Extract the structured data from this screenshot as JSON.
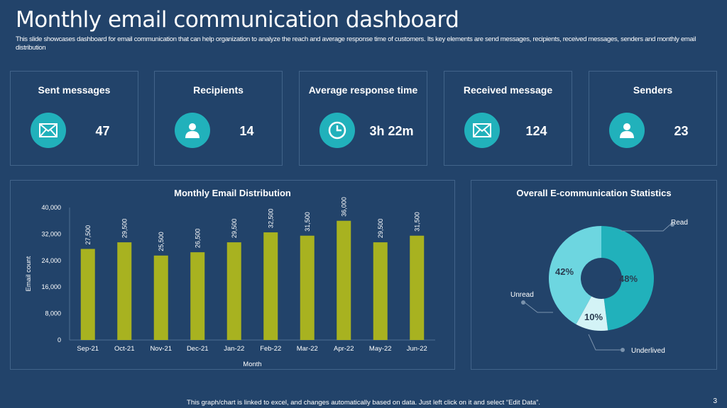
{
  "header": {
    "title": "Monthly email communication dashboard",
    "subtitle": "This slide showcases dashboard for email communication that can help organization to analyze the reach and average response time of customers. Its key elements are send messages, recipients, received messages, senders and monthly email distribution"
  },
  "cards": [
    {
      "label": "Sent messages",
      "value": "47",
      "icon": "envelope-icon"
    },
    {
      "label": "Recipients",
      "value": "14",
      "icon": "user-icon"
    },
    {
      "label": "Average response time",
      "value": "3h 22m",
      "icon": "clock-icon"
    },
    {
      "label": "Received message",
      "value": "124",
      "icon": "envelope-icon"
    },
    {
      "label": "Senders",
      "value": "23",
      "icon": "user-icon"
    }
  ],
  "colors": {
    "background": "#22436a",
    "accent": "#21b1bb",
    "bar": "#a8b220",
    "read": "#21b1bb",
    "unread": "#6dd6e0",
    "underlived": "#d3f3f6"
  },
  "chart_data": [
    {
      "type": "bar",
      "title": "Monthly Email Distribution",
      "xlabel": "Month",
      "ylabel": "Email count",
      "ylim": [
        0,
        40000
      ],
      "yticks": [
        "0",
        "8,000",
        "16,000",
        "24,000",
        "32,000",
        "40,000"
      ],
      "categories": [
        "Sep-21",
        "Oct-21",
        "Nov-21",
        "Dec-21",
        "Jan-22",
        "Feb-22",
        "Mar-22",
        "Apr-22",
        "May-22",
        "Jun-22"
      ],
      "values": [
        27500,
        29500,
        25500,
        26500,
        29500,
        32500,
        31500,
        36000,
        29500,
        31500
      ],
      "data_labels": [
        "27,500",
        "29,500",
        "25,500",
        "26,500",
        "29,500",
        "32,500",
        "31,500",
        "36,000",
        "29,500",
        "31,500"
      ],
      "grid": false
    },
    {
      "type": "pie",
      "title": "Overall E-communication Statistics",
      "donut": true,
      "slices": [
        {
          "name": "Read",
          "value": 48,
          "label": "48%"
        },
        {
          "name": "Underlived",
          "value": 10,
          "label": "10%"
        },
        {
          "name": "Unread",
          "value": 42,
          "label": "42%"
        }
      ]
    }
  ],
  "footer": {
    "note": "This graph/chart is linked to excel, and changes automatically based on data. Just left click on it and select “Edit Data”.",
    "page": "3"
  }
}
